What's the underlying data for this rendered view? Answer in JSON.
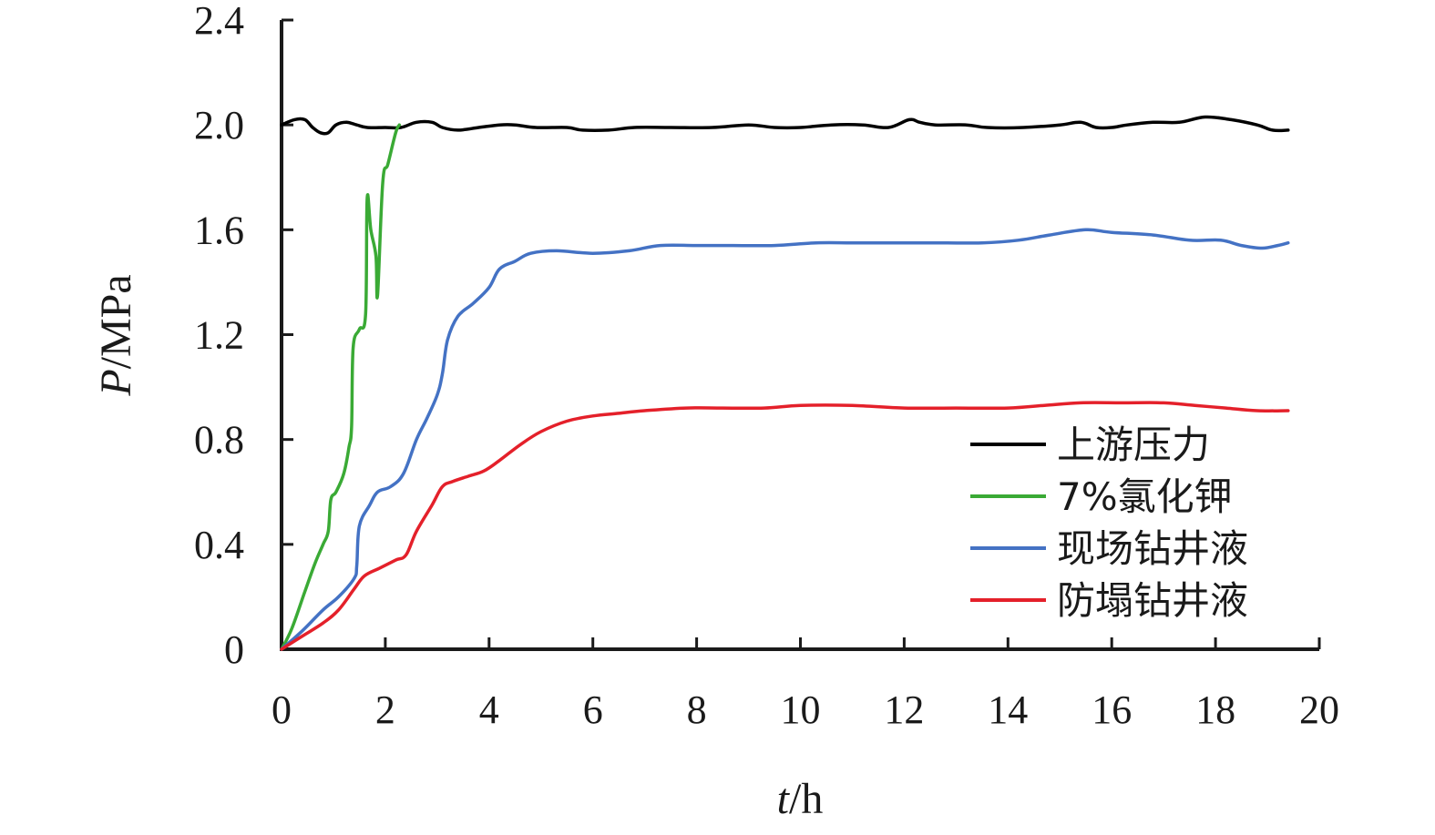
{
  "chart_data": {
    "type": "line",
    "title": "",
    "xlabel": {
      "var": "t",
      "unit": "/h"
    },
    "ylabel": {
      "var": "P",
      "unit": "/MPa"
    },
    "xlim": [
      0,
      20
    ],
    "ylim": [
      0,
      2.4
    ],
    "xticks": [
      0,
      2,
      4,
      6,
      8,
      10,
      12,
      14,
      16,
      18,
      20
    ],
    "xtick_labels": [
      "0",
      "2",
      "4",
      "6",
      "8",
      "10",
      "12",
      "14",
      "16",
      "18",
      "20"
    ],
    "yticks": [
      0,
      0.4,
      0.8,
      1.2,
      1.6,
      2.0,
      2.4
    ],
    "ytick_labels": [
      "0",
      "0.4",
      "0.8",
      "1.2",
      "1.6",
      "2.0",
      "2.4"
    ],
    "grid": false,
    "legend_position": "bottom-right",
    "series": [
      {
        "name": "上游压力",
        "color": "#000000",
        "points": [
          [
            0,
            2.0
          ],
          [
            0.25,
            2.02
          ],
          [
            0.45,
            2.02
          ],
          [
            0.6,
            1.99
          ],
          [
            0.75,
            1.97
          ],
          [
            0.9,
            1.97
          ],
          [
            1.05,
            2.0
          ],
          [
            1.25,
            2.01
          ],
          [
            1.45,
            2.0
          ],
          [
            1.65,
            1.99
          ],
          [
            2.0,
            1.99
          ],
          [
            2.3,
            1.99
          ],
          [
            2.6,
            2.01
          ],
          [
            2.9,
            2.01
          ],
          [
            3.1,
            1.99
          ],
          [
            3.4,
            1.98
          ],
          [
            3.8,
            1.99
          ],
          [
            4.2,
            2.0
          ],
          [
            4.5,
            2.0
          ],
          [
            4.9,
            1.99
          ],
          [
            5.5,
            1.99
          ],
          [
            5.8,
            1.98
          ],
          [
            6.3,
            1.98
          ],
          [
            6.8,
            1.99
          ],
          [
            7.5,
            1.99
          ],
          [
            8.3,
            1.99
          ],
          [
            9.0,
            2.0
          ],
          [
            9.5,
            1.99
          ],
          [
            10.0,
            1.99
          ],
          [
            10.6,
            2.0
          ],
          [
            11.2,
            2.0
          ],
          [
            11.7,
            1.99
          ],
          [
            12.1,
            2.02
          ],
          [
            12.3,
            2.01
          ],
          [
            12.6,
            2.0
          ],
          [
            13.2,
            2.0
          ],
          [
            13.6,
            1.99
          ],
          [
            14.3,
            1.99
          ],
          [
            15.0,
            2.0
          ],
          [
            15.4,
            2.01
          ],
          [
            15.7,
            1.99
          ],
          [
            16.0,
            1.99
          ],
          [
            16.3,
            2.0
          ],
          [
            16.8,
            2.01
          ],
          [
            17.3,
            2.01
          ],
          [
            17.8,
            2.03
          ],
          [
            18.3,
            2.02
          ],
          [
            18.8,
            2.0
          ],
          [
            19.1,
            1.98
          ],
          [
            19.4,
            1.98
          ]
        ]
      },
      {
        "name": "7%氯化钾",
        "color": "#3aaa35",
        "points": [
          [
            0,
            0
          ],
          [
            0.2,
            0.08
          ],
          [
            0.45,
            0.22
          ],
          [
            0.65,
            0.33
          ],
          [
            0.8,
            0.4
          ],
          [
            0.9,
            0.45
          ],
          [
            0.95,
            0.57
          ],
          [
            1.05,
            0.6
          ],
          [
            1.2,
            0.67
          ],
          [
            1.3,
            0.77
          ],
          [
            1.35,
            0.85
          ],
          [
            1.38,
            1.15
          ],
          [
            1.5,
            1.22
          ],
          [
            1.62,
            1.28
          ],
          [
            1.65,
            1.72
          ],
          [
            1.72,
            1.6
          ],
          [
            1.82,
            1.5
          ],
          [
            1.85,
            1.35
          ],
          [
            1.95,
            1.78
          ],
          [
            2.05,
            1.85
          ],
          [
            2.2,
            1.97
          ],
          [
            2.27,
            2.0
          ]
        ]
      },
      {
        "name": "现场钻井液",
        "color": "#4472c4",
        "points": [
          [
            0,
            0
          ],
          [
            0.4,
            0.07
          ],
          [
            0.8,
            0.15
          ],
          [
            1.1,
            0.2
          ],
          [
            1.4,
            0.27
          ],
          [
            1.45,
            0.32
          ],
          [
            1.5,
            0.47
          ],
          [
            1.7,
            0.55
          ],
          [
            1.85,
            0.6
          ],
          [
            2.1,
            0.62
          ],
          [
            2.35,
            0.67
          ],
          [
            2.6,
            0.8
          ],
          [
            2.8,
            0.88
          ],
          [
            3.0,
            0.97
          ],
          [
            3.1,
            1.05
          ],
          [
            3.2,
            1.18
          ],
          [
            3.4,
            1.27
          ],
          [
            3.7,
            1.32
          ],
          [
            4.0,
            1.38
          ],
          [
            4.2,
            1.45
          ],
          [
            4.5,
            1.48
          ],
          [
            4.8,
            1.51
          ],
          [
            5.3,
            1.52
          ],
          [
            6.0,
            1.51
          ],
          [
            6.7,
            1.52
          ],
          [
            7.3,
            1.54
          ],
          [
            8.0,
            1.54
          ],
          [
            8.7,
            1.54
          ],
          [
            9.5,
            1.54
          ],
          [
            10.3,
            1.55
          ],
          [
            11.0,
            1.55
          ],
          [
            11.7,
            1.55
          ],
          [
            12.5,
            1.55
          ],
          [
            13.5,
            1.55
          ],
          [
            14.2,
            1.56
          ],
          [
            14.8,
            1.58
          ],
          [
            15.5,
            1.6
          ],
          [
            16.0,
            1.59
          ],
          [
            16.8,
            1.58
          ],
          [
            17.5,
            1.56
          ],
          [
            18.1,
            1.56
          ],
          [
            18.5,
            1.54
          ],
          [
            18.9,
            1.53
          ],
          [
            19.2,
            1.54
          ],
          [
            19.4,
            1.55
          ]
        ]
      },
      {
        "name": "防塌钻井液",
        "color": "#e4202a",
        "points": [
          [
            0,
            0
          ],
          [
            0.4,
            0.05
          ],
          [
            0.8,
            0.1
          ],
          [
            1.1,
            0.15
          ],
          [
            1.4,
            0.23
          ],
          [
            1.6,
            0.28
          ],
          [
            1.9,
            0.31
          ],
          [
            2.2,
            0.34
          ],
          [
            2.4,
            0.36
          ],
          [
            2.6,
            0.45
          ],
          [
            2.9,
            0.55
          ],
          [
            3.1,
            0.62
          ],
          [
            3.3,
            0.64
          ],
          [
            3.6,
            0.66
          ],
          [
            3.9,
            0.68
          ],
          [
            4.2,
            0.72
          ],
          [
            4.6,
            0.78
          ],
          [
            5.0,
            0.83
          ],
          [
            5.5,
            0.87
          ],
          [
            6.0,
            0.89
          ],
          [
            6.5,
            0.9
          ],
          [
            7.0,
            0.91
          ],
          [
            7.8,
            0.92
          ],
          [
            8.5,
            0.92
          ],
          [
            9.3,
            0.92
          ],
          [
            10.0,
            0.93
          ],
          [
            11.0,
            0.93
          ],
          [
            12.0,
            0.92
          ],
          [
            13.0,
            0.92
          ],
          [
            14.0,
            0.92
          ],
          [
            14.7,
            0.93
          ],
          [
            15.4,
            0.94
          ],
          [
            16.2,
            0.94
          ],
          [
            17.0,
            0.94
          ],
          [
            17.6,
            0.93
          ],
          [
            18.2,
            0.92
          ],
          [
            18.8,
            0.91
          ],
          [
            19.4,
            0.91
          ]
        ]
      }
    ]
  }
}
